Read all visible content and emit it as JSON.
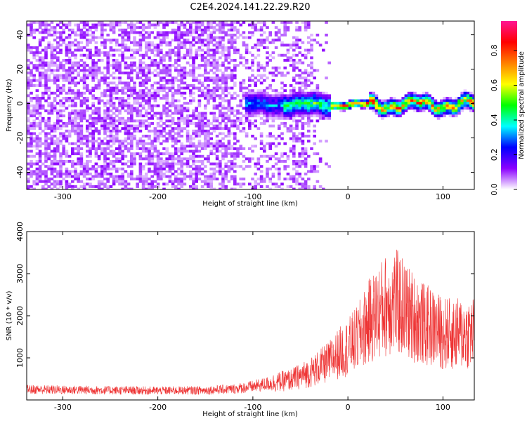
{
  "title": "C2E4.2024.141.22.29.R20",
  "chart_data": [
    {
      "type": "heatmap",
      "xlabel": "Height of straight line (km)",
      "ylabel": "Frequency (Hz)",
      "xlim": [
        -338,
        133
      ],
      "ylim": [
        -50,
        48
      ],
      "x_ticks": [
        -300,
        -200,
        -100,
        0,
        100
      ],
      "y_ticks": [
        -40,
        -20,
        0,
        20,
        40
      ],
      "colorbar": {
        "label": "Normalized spectral amplitude",
        "range": [
          0,
          0.97
        ],
        "ticks": [
          0.0,
          0.2,
          0.4,
          0.6,
          0.8
        ],
        "colormap": [
          "#ffffff",
          "#8b00ff",
          "#0000ff",
          "#00ffff",
          "#00ff00",
          "#ffff00",
          "#ff8000",
          "#ff0000",
          "#ff1493"
        ]
      },
      "features": {
        "noise_region": {
          "x_range": [
            -338,
            -60
          ],
          "typical_amplitude": 0.05
        },
        "signal_band": {
          "x_range": [
            -110,
            133
          ],
          "center_frequency_hz": 0,
          "half_width_hz": 5,
          "peak_amplitude": 0.97
        }
      }
    },
    {
      "type": "line",
      "xlabel": "Height of straight line (km)",
      "ylabel": "SNR (10 * v/v)",
      "xlim": [
        -338,
        133
      ],
      "ylim": [
        0,
        4000
      ],
      "x_ticks": [
        -300,
        -200,
        -100,
        0,
        100
      ],
      "y_ticks": [
        1000,
        2000,
        3000,
        4000
      ],
      "color": "#ee3333",
      "series": [
        {
          "x": [
            -338,
            -300,
            -250,
            -200,
            -150,
            -120,
            -100,
            -80,
            -60,
            -40,
            -20,
            -10,
            0,
            10,
            20,
            30,
            40,
            50,
            60,
            70,
            80,
            90,
            100,
            110,
            120,
            133
          ],
          "y": [
            250,
            240,
            230,
            220,
            230,
            260,
            320,
            400,
            480,
            650,
            900,
            1100,
            1250,
            1450,
            1800,
            2050,
            2250,
            2350,
            2150,
            1950,
            1800,
            1700,
            1600,
            1550,
            1580,
            1600
          ]
        }
      ]
    }
  ]
}
